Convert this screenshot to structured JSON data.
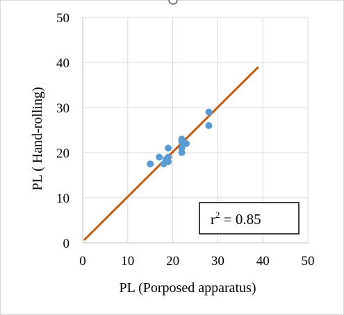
{
  "chart_data": {
    "type": "scatter",
    "title": "",
    "xlabel": "PL (Porposed apparatus)",
    "ylabel": "PL ( Hand-rolling)",
    "xlim": [
      0,
      50
    ],
    "ylim": [
      0,
      50
    ],
    "x_ticks": [
      0,
      10,
      20,
      30,
      40,
      50
    ],
    "y_ticks": [
      0,
      10,
      20,
      30,
      40,
      50
    ],
    "grid": true,
    "legend": "none",
    "series": [
      {
        "type": "scatter",
        "color": "#5B9BD5",
        "x": [
          15,
          17,
          18,
          18.5,
          19,
          19,
          19,
          22,
          22,
          22,
          22,
          23,
          28,
          28
        ],
        "y": [
          17.5,
          19,
          17.5,
          18.5,
          19,
          18,
          21,
          20,
          21,
          22.5,
          23,
          22,
          29,
          26
        ]
      },
      {
        "type": "line",
        "color": "#C55A11",
        "x": [
          0.3,
          39
        ],
        "y": [
          0.6,
          39
        ]
      }
    ],
    "annotation": {
      "text": "r",
      "superscript": "2",
      "value_text": " = 0.85"
    }
  }
}
